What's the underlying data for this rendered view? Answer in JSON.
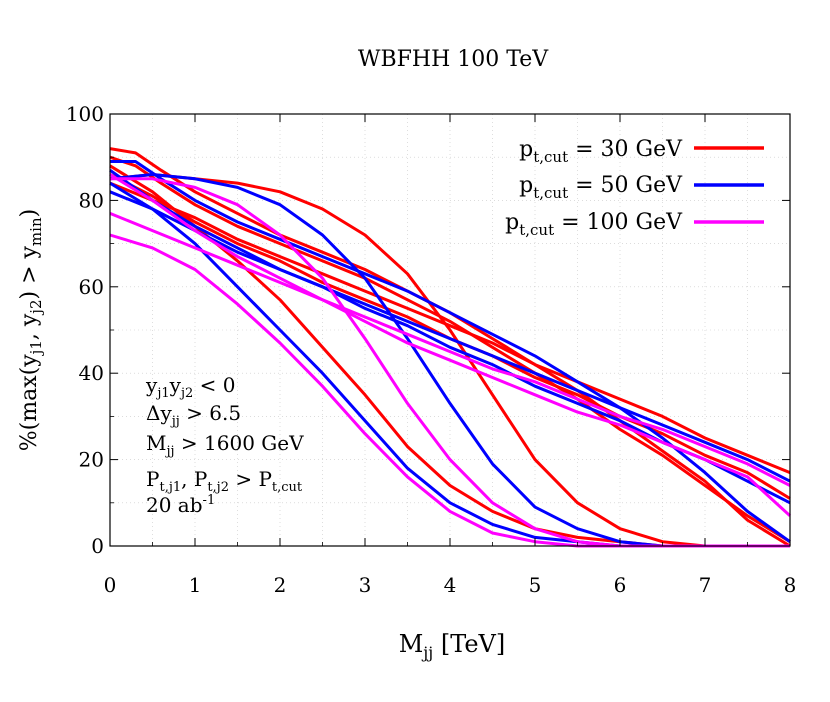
{
  "chart_data": {
    "type": "line",
    "title": "WBFHH 100 TeV",
    "xlabel": "M_{jj} [TeV]",
    "ylabel": "%(max(y_{j1}, y_{j2}) > y_{min})",
    "xlim": [
      0,
      8
    ],
    "ylim": [
      0,
      100
    ],
    "x_ticks": [
      "0",
      "1",
      "2",
      "3",
      "4",
      "5",
      "6",
      "7",
      "8"
    ],
    "y_ticks": [
      "0",
      "20",
      "40",
      "60",
      "80",
      "100"
    ],
    "grid": true,
    "legend_position": "top-right",
    "series": [
      {
        "name": "p_{t,cut} = 30 GeV",
        "color": "#ff0000",
        "curves": [
          {
            "x": [
              0,
              0.3,
              0.6,
              1,
              1.5,
              2,
              2.5,
              3,
              3.5,
              4,
              4.5,
              5,
              5.5,
              6,
              6.5,
              7,
              7.5,
              8
            ],
            "y": [
              92,
              91,
              87,
              82,
              77,
              72,
              68,
              64,
              59,
              54,
              48,
              42,
              36,
              29,
              22,
              15,
              6,
              0
            ]
          },
          {
            "x": [
              0,
              0.3,
              0.6,
              1,
              1.5,
              2,
              2.5,
              3,
              3.5,
              4,
              4.5,
              5,
              5.5,
              6,
              6.5,
              7,
              7.5,
              8
            ],
            "y": [
              90,
              88,
              84,
              79,
              74,
              70,
              66,
              62,
              57,
              52,
              46,
              40,
              34,
              27,
              21,
              14,
              7,
              1
            ]
          },
          {
            "x": [
              0,
              0.5,
              1,
              1.5,
              2,
              2.5,
              3,
              3.5,
              4,
              4.5,
              5,
              5.5,
              6,
              6.5,
              7,
              7.5,
              8
            ],
            "y": [
              86,
              81,
              75,
              70,
              66,
              61,
              57,
              53,
              48,
              44,
              39,
              35,
              30,
              26,
              21,
              17,
              11
            ]
          },
          {
            "x": [
              0,
              0.5,
              1,
              1.5,
              2,
              2.5,
              3,
              3.5,
              4,
              4.5,
              5,
              5.5,
              6,
              6.5,
              7,
              7.5,
              8
            ],
            "y": [
              84,
              80,
              76,
              71,
              67,
              63,
              59,
              55,
              51,
              47,
              42,
              38,
              34,
              30,
              25,
              21,
              17
            ]
          },
          {
            "x": [
              0,
              0.5,
              1,
              1.5,
              2,
              2.5,
              3,
              3.5,
              4,
              4.5,
              5,
              5.5,
              6,
              6.5,
              7,
              7.5,
              8
            ],
            "y": [
              85,
              86,
              85,
              84,
              82,
              78,
              72,
              63,
              50,
              35,
              20,
              10,
              4,
              1,
              0,
              0,
              0
            ]
          },
          {
            "x": [
              0,
              0.5,
              1,
              1.5,
              2,
              2.5,
              3,
              3.5,
              4,
              4.5,
              5,
              5.5,
              6,
              6.5,
              7,
              7.5,
              8
            ],
            "y": [
              88,
              82,
              74,
              66,
              57,
              46,
              35,
              23,
              14,
              8,
              4,
              2,
              1,
              0,
              0,
              0,
              0
            ]
          }
        ]
      },
      {
        "name": "p_{t,cut} = 50 GeV",
        "color": "#0000ff",
        "curves": [
          {
            "x": [
              0,
              0.3,
              0.6,
              1,
              1.5,
              2,
              2.5,
              3,
              3.5,
              4,
              4.5,
              5,
              5.5,
              6,
              6.5,
              7,
              7.5,
              8
            ],
            "y": [
              89,
              89,
              85,
              80,
              75,
              71,
              67,
              63,
              59,
              54,
              49,
              44,
              38,
              32,
              25,
              17,
              8,
              1
            ]
          },
          {
            "x": [
              0,
              0.5,
              1,
              1.5,
              2,
              2.5,
              3,
              3.5,
              4,
              4.5,
              5,
              5.5,
              6,
              6.5,
              7,
              7.5,
              8
            ],
            "y": [
              87,
              80,
              74,
              69,
              64,
              60,
              55,
              51,
              46,
              42,
              37,
              33,
              29,
              24,
              20,
              15,
              10
            ]
          },
          {
            "x": [
              0,
              0.5,
              1,
              1.5,
              2,
              2.5,
              3,
              3.5,
              4,
              4.5,
              5,
              5.5,
              6,
              6.5,
              7,
              7.5,
              8
            ],
            "y": [
              82,
              78,
              73,
              68,
              64,
              60,
              56,
              52,
              48,
              44,
              40,
              36,
              32,
              28,
              24,
              20,
              15
            ]
          },
          {
            "x": [
              0,
              0.5,
              1,
              1.5,
              2,
              2.5,
              3,
              3.5,
              4,
              4.5,
              5,
              5.5,
              6,
              6.5,
              7,
              7.5,
              8
            ],
            "y": [
              85,
              86,
              85,
              83,
              79,
              72,
              62,
              48,
              33,
              19,
              9,
              4,
              1,
              0,
              0,
              0,
              0
            ]
          },
          {
            "x": [
              0,
              0.5,
              1,
              1.5,
              2,
              2.5,
              3,
              3.5,
              4,
              4.5,
              5,
              5.5,
              6,
              6.5,
              7,
              7.5,
              8
            ],
            "y": [
              84,
              78,
              70,
              60,
              50,
              40,
              29,
              18,
              10,
              5,
              2,
              1,
              0,
              0,
              0,
              0,
              0
            ]
          }
        ]
      },
      {
        "name": "p_{t,cut} = 100 GeV",
        "color": "#ff00ff",
        "curves": [
          {
            "x": [
              0,
              0.5,
              1,
              1.5,
              2,
              2.5,
              3,
              3.5,
              4,
              4.5,
              5,
              5.5,
              6,
              6.5,
              7,
              7.5,
              8
            ],
            "y": [
              86,
              80,
              73,
              67,
              62,
              57,
              52,
              47,
              43,
              39,
              35,
              31,
              28,
              24,
              20,
              16,
              7
            ]
          },
          {
            "x": [
              0,
              0.5,
              1,
              1.5,
              2,
              2.5,
              3,
              3.5,
              4,
              4.5,
              5,
              5.5,
              6,
              6.5,
              7,
              7.5,
              8
            ],
            "y": [
              77,
              73,
              69,
              65,
              61,
              57,
              53,
              49,
              45,
              41,
              38,
              34,
              30,
              27,
              23,
              19,
              14
            ]
          },
          {
            "x": [
              0,
              0.5,
              1,
              1.5,
              2,
              2.5,
              3,
              3.5,
              4,
              4.5,
              5,
              5.5,
              6,
              6.5,
              7,
              7.5,
              8
            ],
            "y": [
              85,
              85,
              83,
              79,
              72,
              62,
              48,
              33,
              20,
              10,
              4,
              1,
              0,
              0,
              0,
              0,
              0
            ]
          },
          {
            "x": [
              0,
              0.5,
              1,
              1.5,
              2,
              2.5,
              3,
              3.5,
              4,
              4.5,
              5,
              5.5,
              6,
              6.5,
              7,
              7.5,
              8
            ],
            "y": [
              72,
              69,
              64,
              56,
              47,
              37,
              26,
              16,
              8,
              3,
              1,
              0,
              0,
              0,
              0,
              0,
              0
            ]
          }
        ]
      }
    ],
    "annotations": [
      "y_{j1}y_{j2} < 0",
      "Δy_{jj} > 6.5",
      "M_{jj} > 1600 GeV",
      "P_{t,j1}, P_{t,j2} > P_{t,cut}",
      "20 ab^{-1}"
    ]
  },
  "labels": {
    "title": "WBFHH 100 TeV",
    "xlabel_main": "M",
    "xlabel_sub": "jj",
    "xlabel_unit": " [TeV]",
    "ylabel_lead": "%(max(y",
    "ylabel_sub1": "j1",
    "ylabel_mid": ", y",
    "ylabel_sub2": "j2",
    "ylabel_mid2": ") > y",
    "ylabel_sub3": "min",
    "ylabel_tail": ")",
    "legend": [
      {
        "main": "p",
        "sub": "t,cut",
        "rest": " = 30 GeV"
      },
      {
        "main": "p",
        "sub": "t,cut",
        "rest": " = 50 GeV"
      },
      {
        "main": "p",
        "sub": "t,cut",
        "rest": " = 100 GeV"
      }
    ],
    "notes": {
      "cut1_main": "y",
      "cut1_sub1": "j1",
      "cut1_mid": "y",
      "cut1_sub2": "j2",
      "cut1_rest": " < 0",
      "cut2_main": "Δy",
      "cut2_sub": "jj",
      "cut2_rest": " > 6.5",
      "cut3_main": "M",
      "cut3_sub": "jj",
      "cut3_rest": " > 1600 GeV",
      "cut4_main": "P",
      "cut4_sub1": "t,j1",
      "cut4_mid": ", P",
      "cut4_sub2": "t,j2",
      "cut4_mid2": " > P",
      "cut4_sub3": "t,cut",
      "lumi_main": "20 ab",
      "lumi_sup": "-1"
    }
  }
}
